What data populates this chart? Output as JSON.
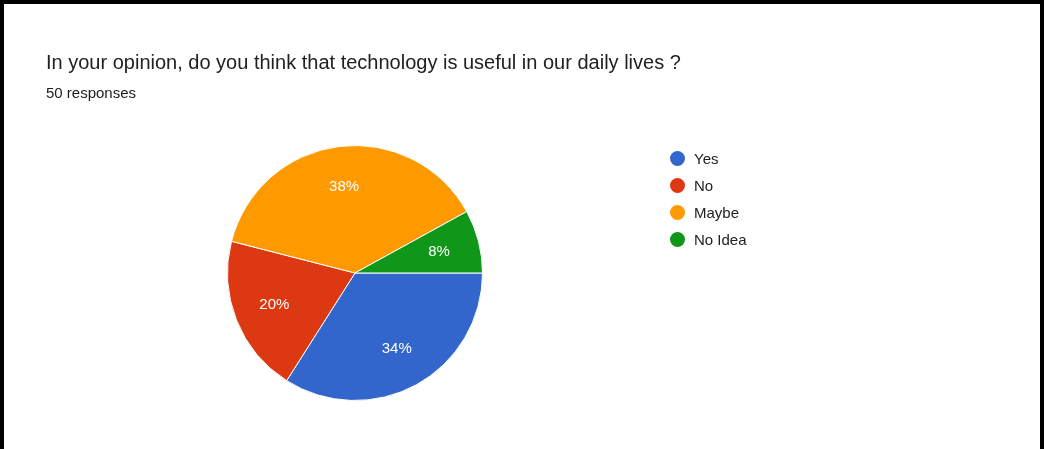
{
  "chart_data": {
    "type": "pie",
    "title": "In your opinion, do you think that technology is useful in our daily lives ?",
    "subtitle": "50 responses",
    "categories": [
      "Yes",
      "No",
      "Maybe",
      "No Idea"
    ],
    "values": [
      34,
      20,
      38,
      8
    ],
    "colors": [
      "#3366cc",
      "#dc3912",
      "#ff9900",
      "#109618"
    ],
    "value_labels": [
      "34%",
      "20%",
      "38%",
      "8%"
    ],
    "legend": "top right"
  }
}
